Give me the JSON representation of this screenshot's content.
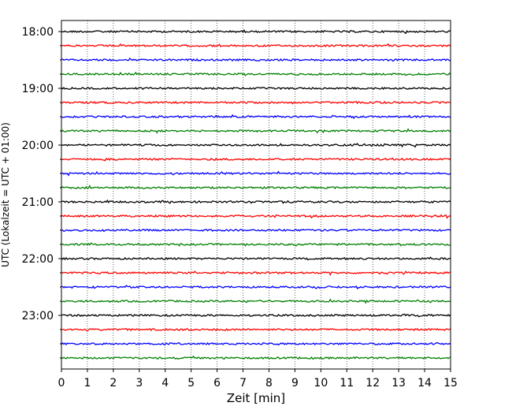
{
  "chart_data": {
    "type": "line",
    "title": "",
    "xlabel": "Zeit  [min]",
    "ylabel": "UTC (Lokalzeit = UTC + 01:00)",
    "xlim": [
      0,
      15
    ],
    "x_ticks": [
      "0",
      "1",
      "2",
      "3",
      "4",
      "5",
      "6",
      "7",
      "8",
      "9",
      "10",
      "11",
      "12",
      "13",
      "14",
      "15"
    ],
    "y_tick_labels": [
      "18:00",
      "19:00",
      "20:00",
      "21:00",
      "22:00",
      "23:00"
    ],
    "trace_start_times": [
      "18:00",
      "18:15",
      "18:30",
      "18:45",
      "19:00",
      "19:15",
      "19:30",
      "19:45",
      "20:00",
      "20:15",
      "20:30",
      "20:45",
      "21:00",
      "21:15",
      "21:30",
      "21:45",
      "22:00",
      "22:15",
      "22:30",
      "22:45",
      "23:00",
      "23:15",
      "23:30",
      "23:45"
    ],
    "trace_colors": [
      "#000000",
      "#ff0000",
      "#0000ff",
      "#008000"
    ],
    "grid": "vertical-dotted",
    "legend": "none"
  }
}
